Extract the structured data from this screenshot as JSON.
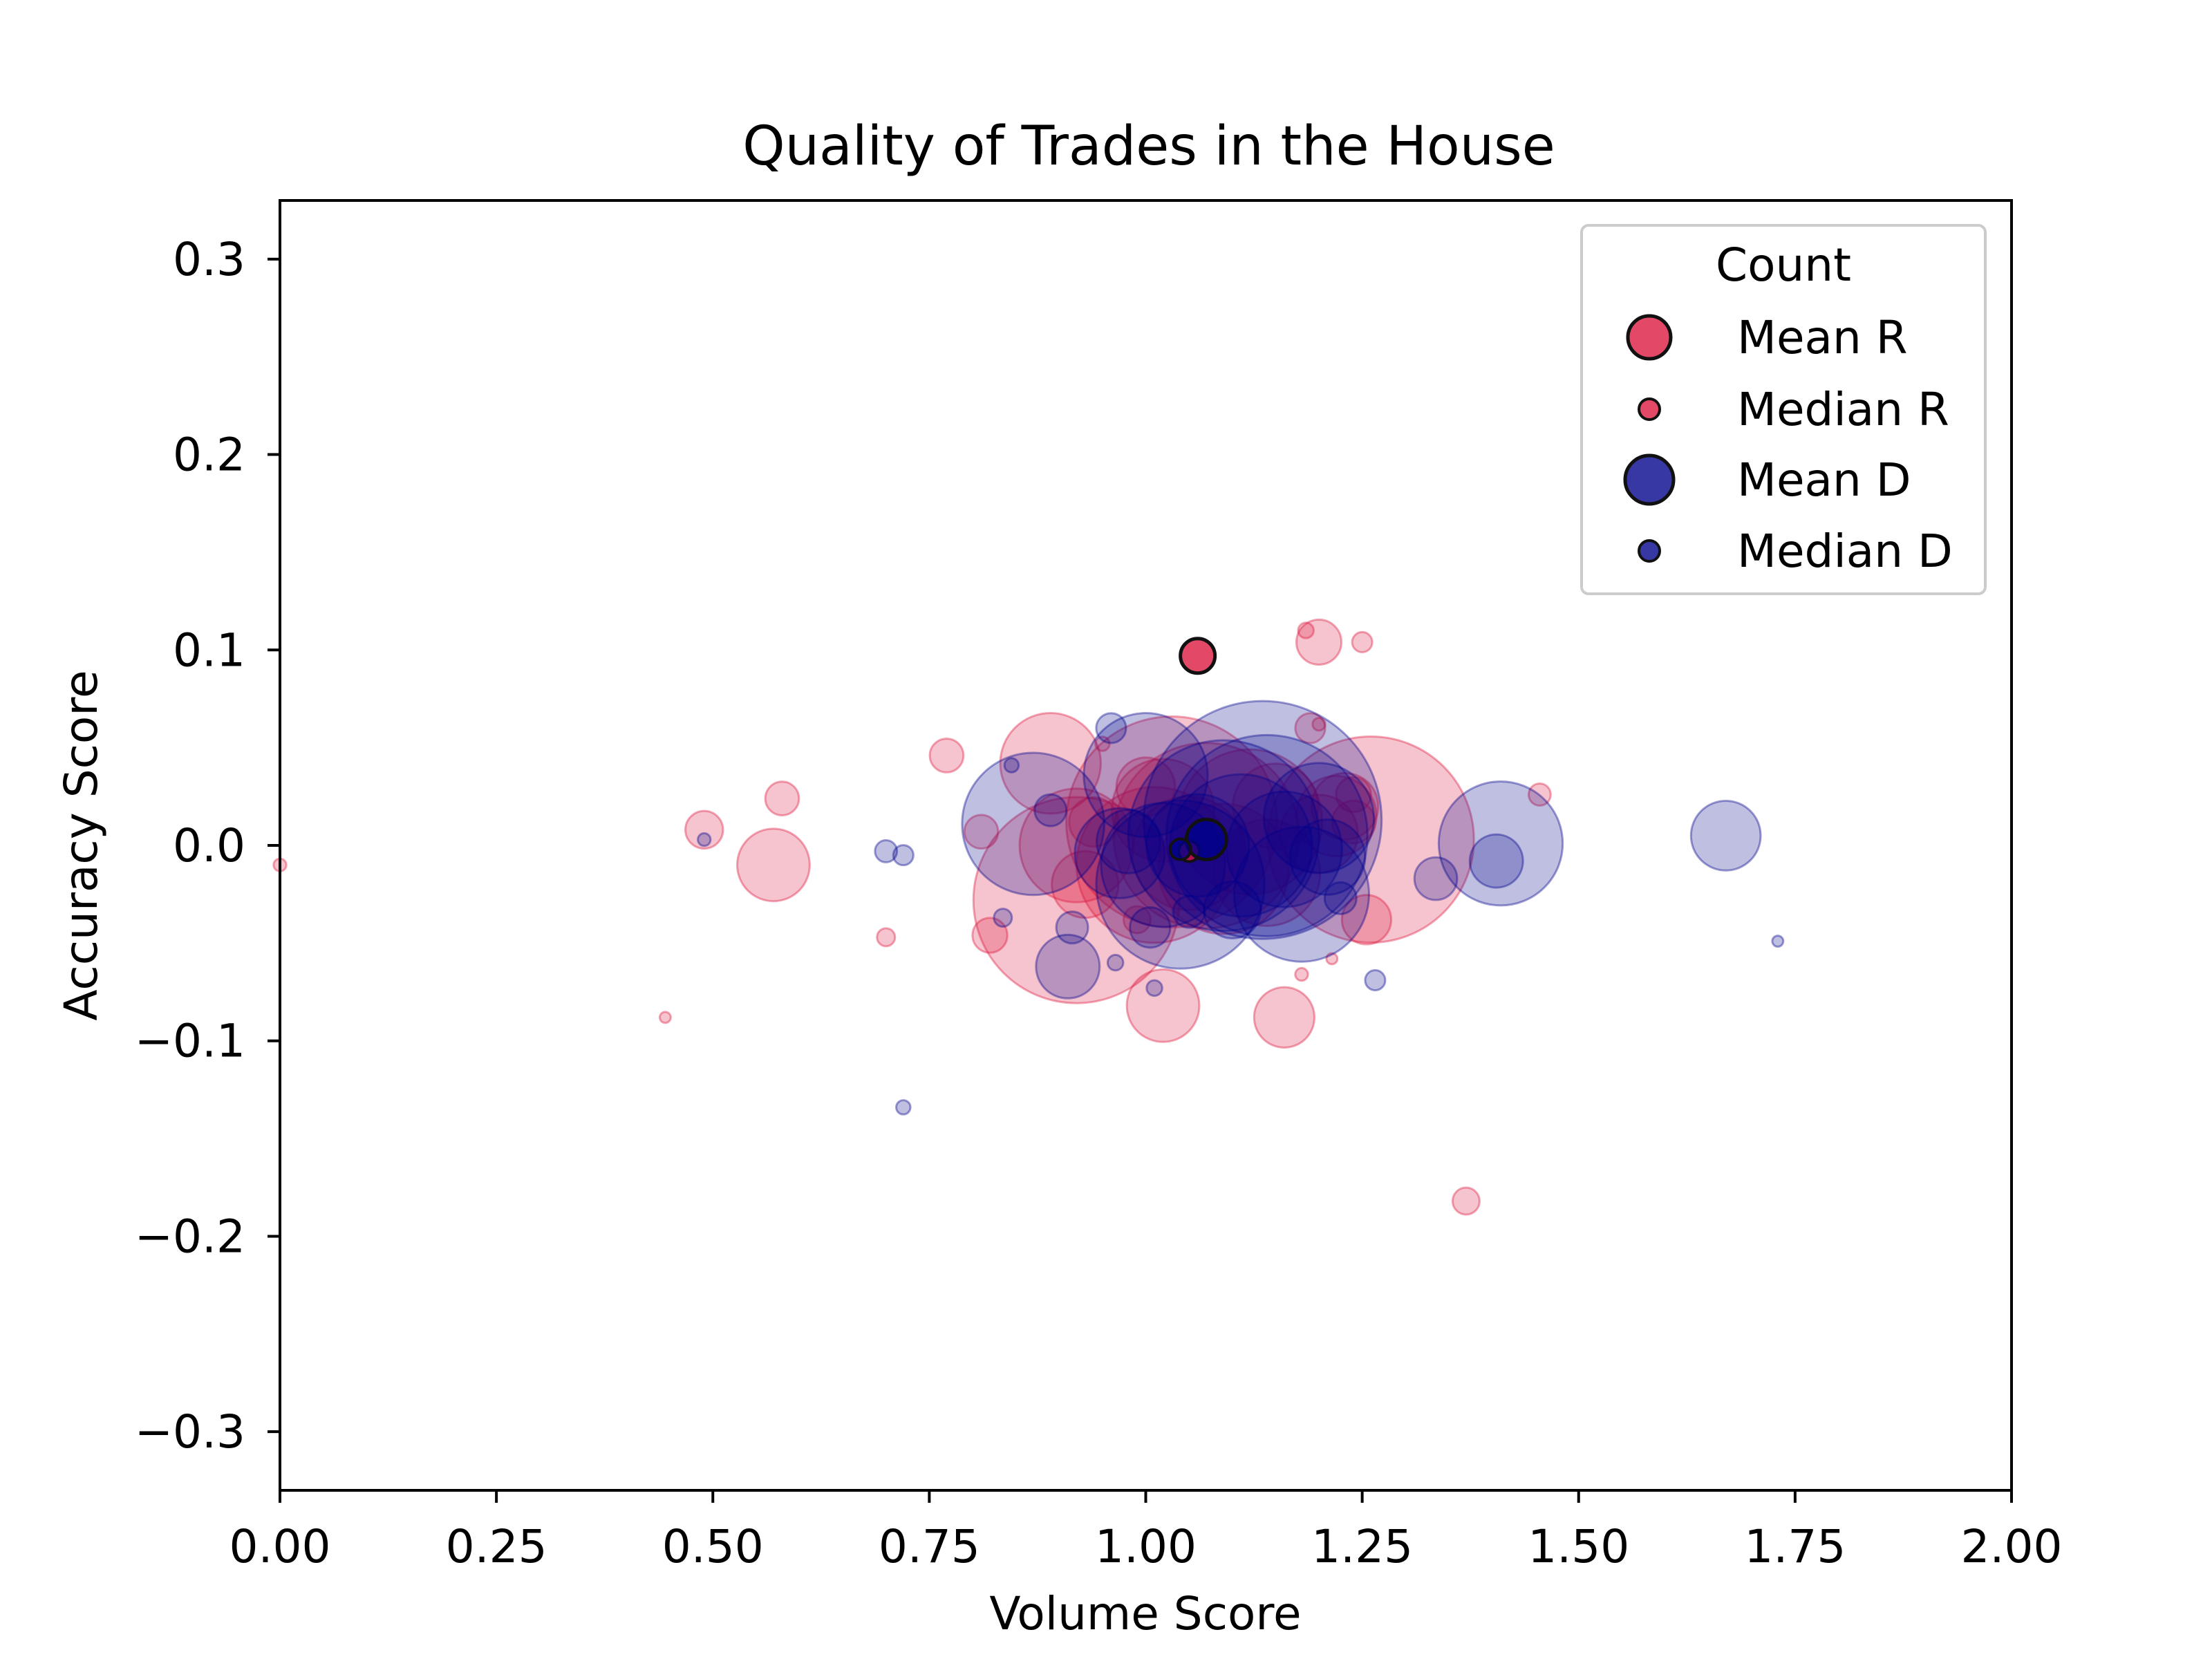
{
  "chart_data": {
    "type": "scatter",
    "title": "Quality of Trades in the House",
    "xlabel": "Volume Score",
    "ylabel": "Accuracy Score",
    "xlim": [
      0,
      2
    ],
    "ylim": [
      -0.33,
      0.33
    ],
    "x_ticks": [
      0.0,
      0.25,
      0.5,
      0.75,
      1.0,
      1.25,
      1.5,
      1.75,
      2.0
    ],
    "x_tick_labels": [
      "0.00",
      "0.25",
      "0.50",
      "0.75",
      "1.00",
      "1.25",
      "1.50",
      "1.75",
      "2.00"
    ],
    "y_ticks": [
      0.3,
      0.2,
      0.1,
      0.0,
      -0.1,
      -0.2,
      -0.3
    ],
    "y_tick_labels": [
      "0.3",
      "0.2",
      "0.1",
      "0.0",
      "−0.1",
      "−0.2",
      "−0.3"
    ],
    "grid": false,
    "legend": {
      "title": "Count",
      "placement": "upper right",
      "entries": [
        {
          "label": "Mean R",
          "color": "#dc143c",
          "marker_relative_size": 1.0
        },
        {
          "label": "Median R",
          "color": "#dc143c",
          "marker_relative_size": 0.55
        },
        {
          "label": "Mean D",
          "color": "#00008b",
          "marker_relative_size": 1.1
        },
        {
          "label": "Median D",
          "color": "#00008b",
          "marker_relative_size": 0.55
        }
      ]
    },
    "colors": {
      "R": "#dc143c",
      "D": "#00008b"
    },
    "series": [
      {
        "party": "R",
        "points": [
          {
            "x": 0.0,
            "y": -0.01,
            "count": 4
          },
          {
            "x": 0.445,
            "y": -0.088,
            "count": 3
          },
          {
            "x": 0.49,
            "y": 0.008,
            "count": 35
          },
          {
            "x": 0.57,
            "y": -0.01,
            "count": 130
          },
          {
            "x": 0.58,
            "y": 0.024,
            "count": 28
          },
          {
            "x": 0.7,
            "y": -0.047,
            "count": 8
          },
          {
            "x": 0.77,
            "y": 0.046,
            "count": 28
          },
          {
            "x": 0.81,
            "y": 0.007,
            "count": 28
          },
          {
            "x": 0.82,
            "y": -0.046,
            "count": 30
          },
          {
            "x": 0.89,
            "y": 0.042,
            "count": 250
          },
          {
            "x": 0.92,
            "y": -0.028,
            "count": 1050
          },
          {
            "x": 0.92,
            "y": 0.0,
            "count": 320
          },
          {
            "x": 0.93,
            "y": -0.02,
            "count": 110
          },
          {
            "x": 0.94,
            "y": 0.012,
            "count": 60
          },
          {
            "x": 0.95,
            "y": 0.052,
            "count": 5
          },
          {
            "x": 0.99,
            "y": -0.038,
            "count": 18
          },
          {
            "x": 1.0,
            "y": 0.03,
            "count": 85
          },
          {
            "x": 1.01,
            "y": -0.01,
            "count": 600
          },
          {
            "x": 1.02,
            "y": 0.018,
            "count": 260
          },
          {
            "x": 1.02,
            "y": -0.082,
            "count": 130
          },
          {
            "x": 1.03,
            "y": 0.012,
            "count": 1100
          },
          {
            "x": 1.05,
            "y": -0.004,
            "count": 320
          },
          {
            "x": 1.07,
            "y": 0.005,
            "count": 850
          },
          {
            "x": 1.09,
            "y": -0.012,
            "count": 420
          },
          {
            "x": 1.12,
            "y": 0.012,
            "count": 520
          },
          {
            "x": 1.14,
            "y": -0.014,
            "count": 280
          },
          {
            "x": 1.15,
            "y": 0.02,
            "count": 180
          },
          {
            "x": 1.16,
            "y": -0.088,
            "count": 90
          },
          {
            "x": 1.18,
            "y": -0.066,
            "count": 4
          },
          {
            "x": 1.185,
            "y": 0.11,
            "count": 6
          },
          {
            "x": 1.19,
            "y": 0.06,
            "count": 22
          },
          {
            "x": 1.2,
            "y": 0.104,
            "count": 50
          },
          {
            "x": 1.2,
            "y": 0.006,
            "count": 150
          },
          {
            "x": 1.2,
            "y": 0.062,
            "count": 4
          },
          {
            "x": 1.215,
            "y": -0.058,
            "count": 3
          },
          {
            "x": 1.22,
            "y": 0.015,
            "count": 160
          },
          {
            "x": 1.23,
            "y": 0.02,
            "count": 110
          },
          {
            "x": 1.24,
            "y": 0.012,
            "count": 45
          },
          {
            "x": 1.24,
            "y": 0.026,
            "count": 30
          },
          {
            "x": 1.25,
            "y": 0.104,
            "count": 10
          },
          {
            "x": 1.255,
            "y": -0.038,
            "count": 60
          },
          {
            "x": 1.26,
            "y": 0.003,
            "count": 1050
          },
          {
            "x": 1.37,
            "y": -0.182,
            "count": 18
          },
          {
            "x": 1.455,
            "y": 0.026,
            "count": 12
          }
        ],
        "mean": {
          "x": 1.06,
          "y": 0.097
        },
        "median": {
          "x": 1.05,
          "y": -0.003
        }
      },
      {
        "party": "D",
        "points": [
          {
            "x": 0.49,
            "y": 0.003,
            "count": 4
          },
          {
            "x": 0.7,
            "y": -0.003,
            "count": 12
          },
          {
            "x": 0.72,
            "y": -0.005,
            "count": 10
          },
          {
            "x": 0.72,
            "y": -0.134,
            "count": 5
          },
          {
            "x": 0.835,
            "y": -0.037,
            "count": 8
          },
          {
            "x": 0.845,
            "y": 0.041,
            "count": 5
          },
          {
            "x": 0.87,
            "y": 0.011,
            "count": 500
          },
          {
            "x": 0.89,
            "y": 0.018,
            "count": 25
          },
          {
            "x": 0.91,
            "y": -0.062,
            "count": 100
          },
          {
            "x": 0.915,
            "y": -0.042,
            "count": 25
          },
          {
            "x": 0.96,
            "y": 0.06,
            "count": 22
          },
          {
            "x": 0.965,
            "y": -0.06,
            "count": 6
          },
          {
            "x": 0.97,
            "y": -0.004,
            "count": 200
          },
          {
            "x": 0.98,
            "y": 0.002,
            "count": 100
          },
          {
            "x": 1.0,
            "y": 0.036,
            "count": 380
          },
          {
            "x": 1.005,
            "y": -0.042,
            "count": 40
          },
          {
            "x": 1.01,
            "y": -0.073,
            "count": 6
          },
          {
            "x": 1.02,
            "y": -0.01,
            "count": 380
          },
          {
            "x": 1.04,
            "y": -0.02,
            "count": 700
          },
          {
            "x": 1.05,
            "y": -0.034,
            "count": 25
          },
          {
            "x": 1.06,
            "y": 0.0,
            "count": 260
          },
          {
            "x": 1.09,
            "y": 0.005,
            "count": 900
          },
          {
            "x": 1.1,
            "y": -0.033,
            "count": 80
          },
          {
            "x": 1.11,
            "y": 0.0,
            "count": 500
          },
          {
            "x": 1.135,
            "y": 0.013,
            "count": 1400
          },
          {
            "x": 1.14,
            "y": 0.005,
            "count": 1000
          },
          {
            "x": 1.16,
            "y": -0.002,
            "count": 330
          },
          {
            "x": 1.18,
            "y": -0.025,
            "count": 450
          },
          {
            "x": 1.2,
            "y": 0.014,
            "count": 300
          },
          {
            "x": 1.21,
            "y": -0.006,
            "count": 140
          },
          {
            "x": 1.225,
            "y": -0.027,
            "count": 25
          },
          {
            "x": 1.265,
            "y": -0.069,
            "count": 10
          },
          {
            "x": 1.335,
            "y": -0.017,
            "count": 45
          },
          {
            "x": 1.405,
            "y": -0.008,
            "count": 70
          },
          {
            "x": 1.41,
            "y": 0.001,
            "count": 380
          },
          {
            "x": 1.67,
            "y": 0.005,
            "count": 120
          },
          {
            "x": 1.73,
            "y": -0.049,
            "count": 3
          }
        ],
        "mean": {
          "x": 1.07,
          "y": 0.003
        },
        "median": {
          "x": 1.04,
          "y": -0.002
        }
      }
    ]
  }
}
